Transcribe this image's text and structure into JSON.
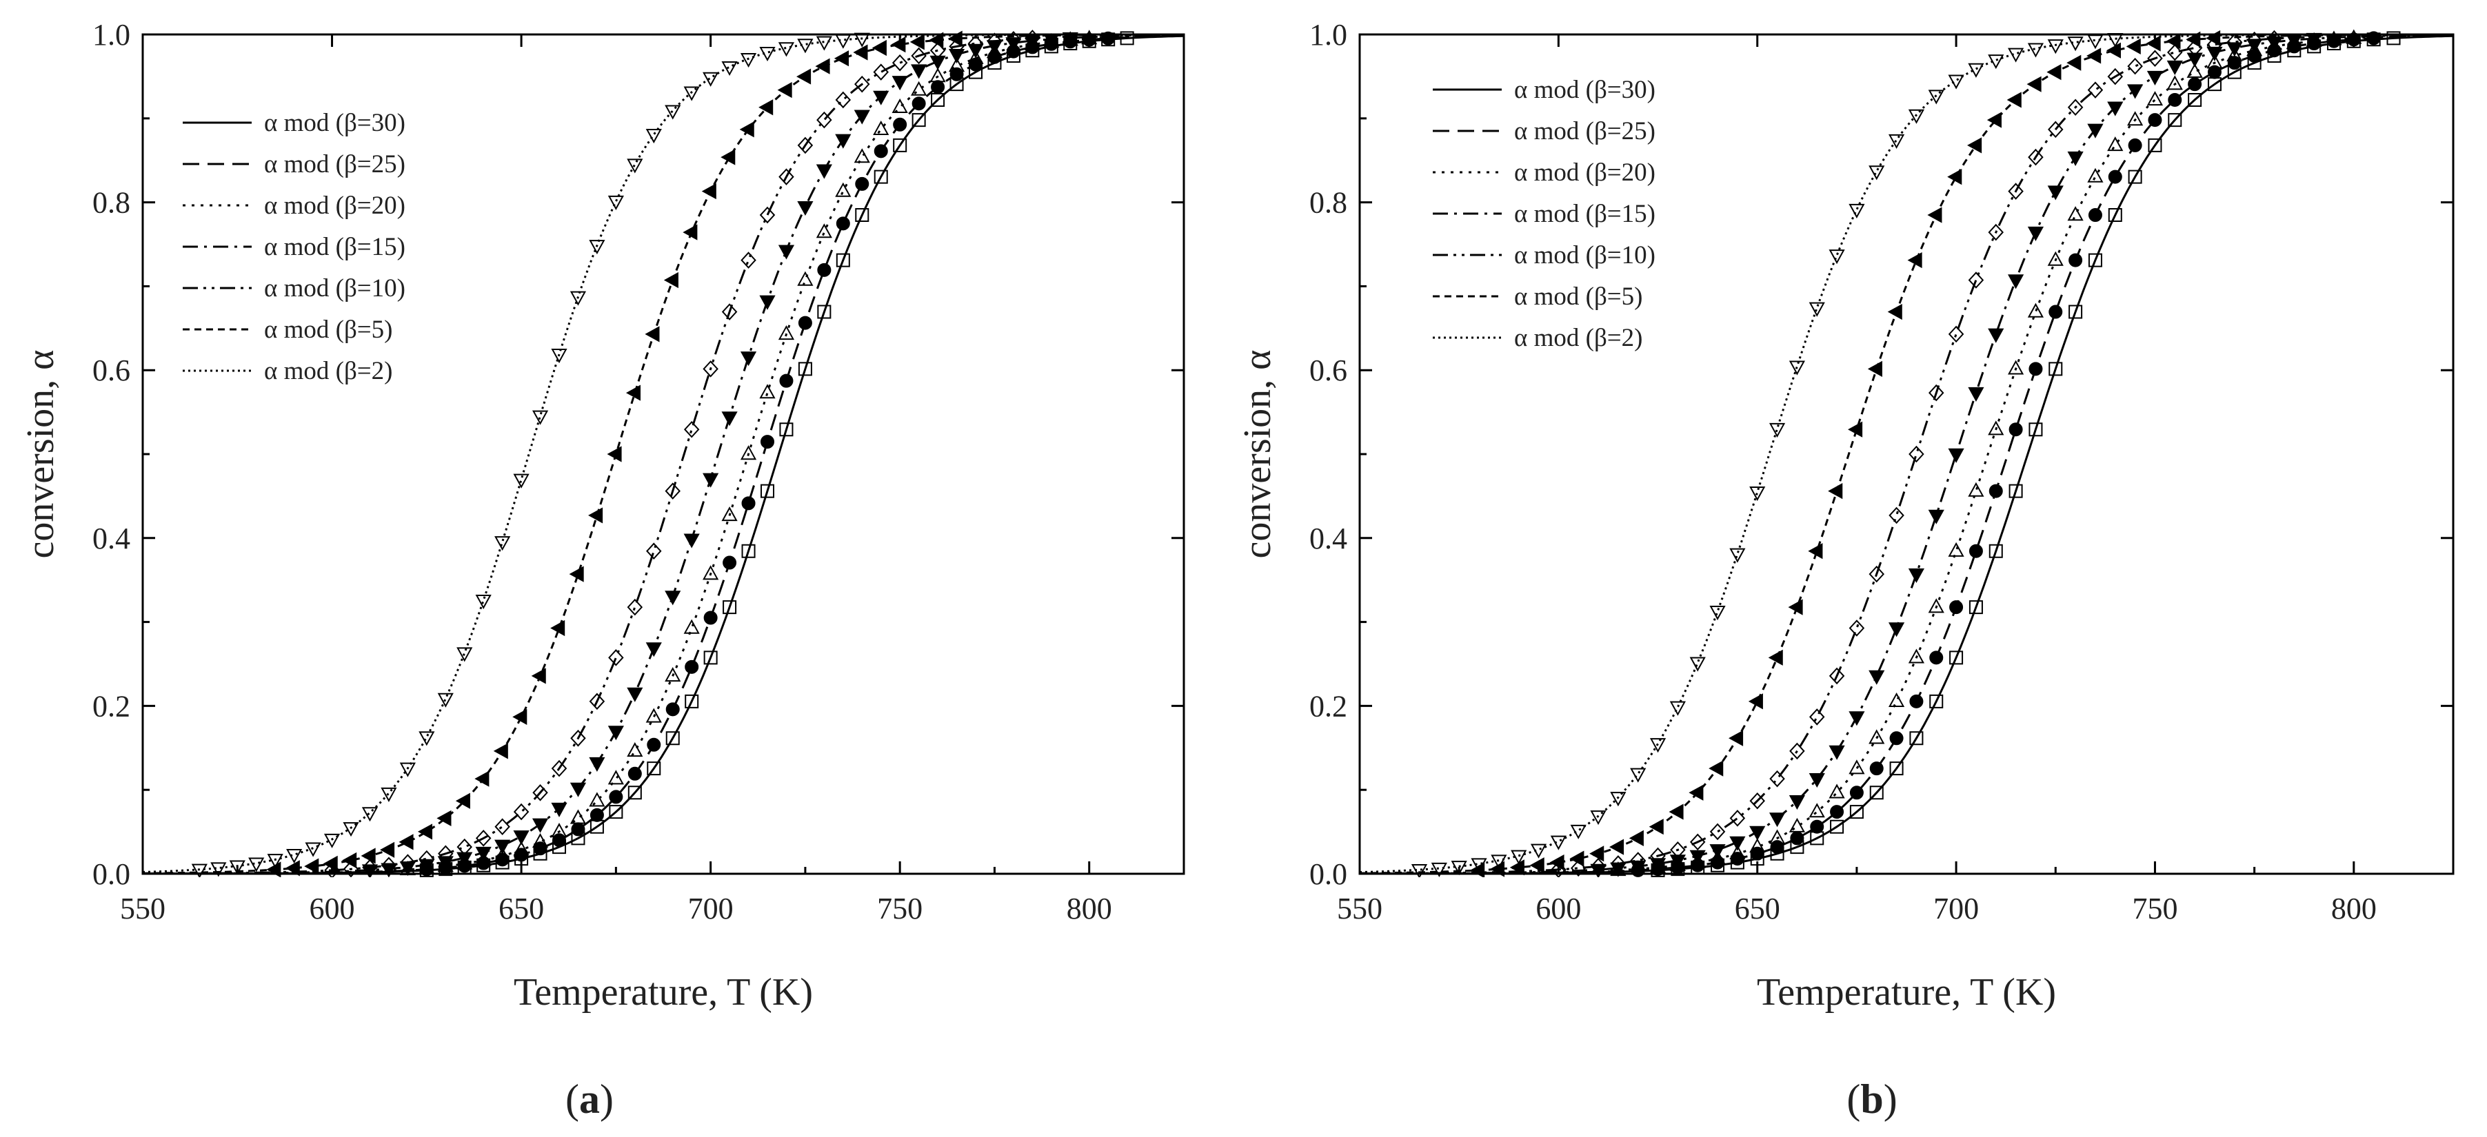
{
  "figure": {
    "panels": [
      {
        "label_open": "(",
        "label_letter": "a",
        "label_close": ")"
      },
      {
        "label_open": "(",
        "label_letter": "b",
        "label_close": ")"
      }
    ]
  },
  "chart_data": [
    {
      "type": "line",
      "panel": "a",
      "xlabel": "Temperature, T (K)",
      "ylabel": "conversion, α",
      "xlim": [
        550,
        825
      ],
      "ylim": [
        0,
        1
      ],
      "xticks": [
        550,
        600,
        650,
        700,
        750,
        800
      ],
      "yticks": [
        0.0,
        0.2,
        0.4,
        0.6,
        0.8,
        1.0
      ],
      "ytick_labels": [
        "0.0",
        "0.2",
        "0.4",
        "0.6",
        "0.8",
        "1.0"
      ],
      "legend_position": "top-left",
      "series": [
        {
          "name": "α mod (β=30)",
          "line": "solid",
          "marker": "open-square",
          "T_half": 718,
          "width": 17.0
        },
        {
          "name": "α mod (β=25)",
          "line": "dash",
          "marker": "filled-circle",
          "T_half": 714,
          "width": 17.0
        },
        {
          "name": "α mod (β=20)",
          "line": "dot",
          "marker": "open-triangle-up",
          "T_half": 710,
          "width": 17.0
        },
        {
          "name": "α mod (β=15)",
          "line": "dashdot",
          "marker": "filled-triangle-down",
          "T_half": 702,
          "width": 17.0
        },
        {
          "name": "α mod (β=10)",
          "line": "dashdotdot",
          "marker": "open-diamond",
          "T_half": 693,
          "width": 17.0
        },
        {
          "name": "α mod (β=5)",
          "line": "shortdash",
          "marker": "filled-triangle-left",
          "T_half": 675,
          "width": 17.0
        },
        {
          "name": "α mod (β=2)",
          "line": "shortdot",
          "marker": "open-triangle-down",
          "T_half": 652,
          "width": 16.5
        }
      ]
    },
    {
      "type": "line",
      "panel": "b",
      "xlabel": "Temperature, T (K)",
      "ylabel": "conversion, α",
      "xlim": [
        550,
        825
      ],
      "ylim": [
        0,
        1
      ],
      "xticks": [
        550,
        600,
        650,
        700,
        750,
        800
      ],
      "yticks": [
        0.0,
        0.2,
        0.4,
        0.6,
        0.8,
        1.0
      ],
      "ytick_labels": [
        "0.0",
        "0.2",
        "0.4",
        "0.6",
        "0.8",
        "1.0"
      ],
      "legend_position": "top-left",
      "series": [
        {
          "name": "α mod (β=30)",
          "line": "solid",
          "marker": "open-square",
          "T_half": 718,
          "width": 17.0
        },
        {
          "name": "α mod (β=25)",
          "line": "dash",
          "marker": "filled-circle",
          "T_half": 713,
          "width": 17.0
        },
        {
          "name": "α mod (β=20)",
          "line": "dot",
          "marker": "open-triangle-up",
          "T_half": 708,
          "width": 17.0
        },
        {
          "name": "α mod (β=15)",
          "line": "dashdot",
          "marker": "filled-triangle-down",
          "T_half": 700,
          "width": 17.0
        },
        {
          "name": "α mod (β=10)",
          "line": "dashdotdot",
          "marker": "open-diamond",
          "T_half": 690,
          "width": 17.0
        },
        {
          "name": "α mod (β=5)",
          "line": "shortdash",
          "marker": "filled-triangle-left",
          "T_half": 673,
          "width": 17.0
        },
        {
          "name": "α mod (β=2)",
          "line": "shortdot",
          "marker": "open-triangle-down",
          "T_half": 653,
          "width": 16.5
        }
      ]
    }
  ]
}
